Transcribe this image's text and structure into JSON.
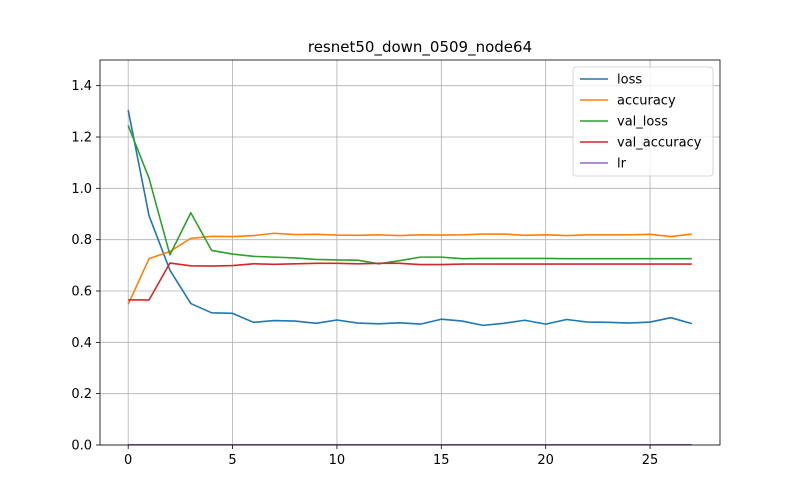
{
  "chart_data": {
    "type": "line",
    "title": "resnet50_down_0509_node64",
    "xlabel": "",
    "ylabel": "",
    "xlim": [
      -1.35,
      28.35
    ],
    "ylim": [
      0,
      1.5
    ],
    "xticks": [
      0,
      5,
      10,
      15,
      20,
      25
    ],
    "yticks": [
      0.0,
      0.2,
      0.4,
      0.6,
      0.8,
      1.0,
      1.2,
      1.4
    ],
    "grid": true,
    "legend_position": "top-right",
    "x": [
      0,
      1,
      2,
      3,
      4,
      5,
      6,
      7,
      8,
      9,
      10,
      11,
      12,
      13,
      14,
      15,
      16,
      17,
      18,
      19,
      20,
      21,
      22,
      23,
      24,
      25,
      26,
      27
    ],
    "series": [
      {
        "name": "loss",
        "color": "#1f77b4",
        "values": [
          1.305,
          0.893,
          0.681,
          0.551,
          0.515,
          0.513,
          0.478,
          0.485,
          0.483,
          0.474,
          0.487,
          0.475,
          0.472,
          0.476,
          0.471,
          0.49,
          0.483,
          0.466,
          0.474,
          0.486,
          0.471,
          0.489,
          0.479,
          0.478,
          0.475,
          0.479,
          0.496,
          0.473
        ]
      },
      {
        "name": "accuracy",
        "color": "#ff7f0e",
        "values": [
          0.548,
          0.726,
          0.754,
          0.805,
          0.813,
          0.812,
          0.816,
          0.825,
          0.82,
          0.821,
          0.818,
          0.817,
          0.819,
          0.816,
          0.819,
          0.818,
          0.819,
          0.822,
          0.822,
          0.817,
          0.819,
          0.816,
          0.819,
          0.819,
          0.819,
          0.821,
          0.812,
          0.822
        ]
      },
      {
        "name": "val_loss",
        "color": "#2ca02c",
        "values": [
          1.245,
          1.039,
          0.741,
          0.905,
          0.758,
          0.744,
          0.735,
          0.732,
          0.729,
          0.723,
          0.721,
          0.72,
          0.706,
          0.718,
          0.732,
          0.732,
          0.726,
          0.727,
          0.727,
          0.727,
          0.727,
          0.726,
          0.726,
          0.726,
          0.726,
          0.726,
          0.726,
          0.726
        ]
      },
      {
        "name": "val_accuracy",
        "color": "#d62728",
        "values": [
          0.565,
          0.565,
          0.709,
          0.698,
          0.697,
          0.699,
          0.706,
          0.704,
          0.706,
          0.708,
          0.708,
          0.706,
          0.708,
          0.708,
          0.703,
          0.703,
          0.705,
          0.705,
          0.705,
          0.705,
          0.705,
          0.705,
          0.705,
          0.705,
          0.705,
          0.705,
          0.705,
          0.705
        ]
      },
      {
        "name": "lr",
        "color": "#9467bd",
        "values": [
          0.001,
          0.001,
          0.001,
          0.001,
          0.001,
          0.001,
          0.001,
          0.001,
          0.001,
          0.001,
          0.001,
          0.001,
          0.001,
          0.001,
          0.001,
          0.001,
          0.001,
          0.001,
          0.001,
          0.001,
          0.001,
          0.001,
          0.001,
          0.001,
          0.001,
          0.001,
          0.001,
          0.001
        ]
      }
    ]
  }
}
